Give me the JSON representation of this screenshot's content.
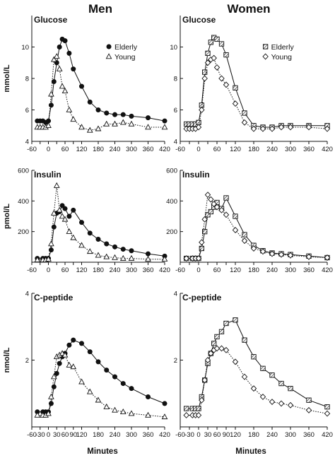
{
  "headers": {
    "left": "Men",
    "right": "Women"
  },
  "x_axis_label": "Minutes",
  "row_ylabels": [
    "mmol/L",
    "pmol/L",
    "nmol/L"
  ],
  "chart_data": [
    {
      "type": "line",
      "panel_label": "Glucose",
      "column": 0,
      "row": 0,
      "xlim": [
        -60,
        420
      ],
      "ylim": [
        4,
        12
      ],
      "xticks": [
        -60,
        -30,
        0,
        30,
        60,
        90,
        120,
        180,
        240,
        300,
        360,
        420
      ],
      "xticklabels": [
        "-60",
        "",
        "0",
        "",
        "60",
        "",
        "120",
        "180",
        "240",
        "300",
        "360",
        "420"
      ],
      "yticks": [
        4,
        6,
        8,
        10
      ],
      "yticklabels": [
        "4",
        "6",
        "8",
        "10"
      ],
      "legend": {
        "position": "top-right"
      },
      "series": [
        {
          "name": "Elderly",
          "marker": "filled-circle",
          "line": "solid",
          "x": [
            -40,
            -30,
            -20,
            -10,
            0,
            10,
            20,
            30,
            40,
            50,
            60,
            75,
            90,
            120,
            150,
            180,
            210,
            240,
            270,
            300,
            360,
            420
          ],
          "y": [
            5.3,
            5.3,
            5.3,
            5.2,
            5.3,
            6.3,
            7.8,
            9.0,
            10.0,
            10.5,
            10.4,
            9.6,
            8.6,
            7.5,
            6.5,
            6.0,
            5.8,
            5.7,
            5.7,
            5.6,
            5.5,
            5.3
          ]
        },
        {
          "name": "Young",
          "marker": "open-triangle",
          "line": "dotted",
          "x": [
            -40,
            -30,
            -20,
            -10,
            0,
            10,
            20,
            30,
            40,
            50,
            60,
            75,
            90,
            120,
            150,
            180,
            210,
            240,
            270,
            300,
            360,
            420
          ],
          "y": [
            4.9,
            4.9,
            4.9,
            4.9,
            5.0,
            7.0,
            9.2,
            9.4,
            8.6,
            7.5,
            7.2,
            6.0,
            5.4,
            4.9,
            4.7,
            4.8,
            5.1,
            5.1,
            5.2,
            5.1,
            4.9,
            4.9
          ]
        }
      ]
    },
    {
      "type": "line",
      "panel_label": "Glucose",
      "column": 1,
      "row": 0,
      "xlim": [
        -60,
        420
      ],
      "ylim": [
        4,
        12
      ],
      "xticks": [
        -60,
        -30,
        0,
        30,
        60,
        90,
        120,
        180,
        240,
        300,
        360,
        420
      ],
      "xticklabels": [
        "-60",
        "",
        "0",
        "",
        "60",
        "",
        "120",
        "180",
        "240",
        "300",
        "360",
        "420"
      ],
      "yticks": [
        4,
        6,
        8,
        10
      ],
      "yticklabels": [
        "4",
        "6",
        "8",
        "10"
      ],
      "legend": {
        "position": "top-right"
      },
      "series": [
        {
          "name": "Elderly",
          "marker": "hatched-square",
          "line": "solid",
          "x": [
            -40,
            -30,
            -20,
            -10,
            0,
            10,
            20,
            30,
            40,
            50,
            60,
            75,
            90,
            120,
            150,
            180,
            210,
            240,
            270,
            300,
            360,
            420
          ],
          "y": [
            5.1,
            5.1,
            5.1,
            5.1,
            5.2,
            6.3,
            8.4,
            9.6,
            10.3,
            10.6,
            10.5,
            10.2,
            9.5,
            7.4,
            5.8,
            5.0,
            4.9,
            4.9,
            5.0,
            5.0,
            5.0,
            5.0
          ]
        },
        {
          "name": "Young",
          "marker": "open-diamond",
          "line": "dotted",
          "x": [
            -40,
            -30,
            -20,
            -10,
            0,
            10,
            20,
            30,
            40,
            50,
            60,
            75,
            90,
            120,
            150,
            180,
            210,
            240,
            270,
            300,
            360,
            420
          ],
          "y": [
            4.8,
            4.8,
            4.8,
            4.8,
            4.9,
            6.0,
            8.0,
            9.0,
            9.2,
            9.3,
            8.7,
            8.0,
            7.6,
            6.4,
            5.2,
            4.8,
            4.8,
            4.8,
            4.9,
            4.9,
            4.9,
            4.8
          ]
        }
      ]
    },
    {
      "type": "line",
      "panel_label": "Insulin",
      "column": 0,
      "row": 1,
      "xlim": [
        -60,
        420
      ],
      "ylim": [
        0,
        600
      ],
      "xticks": [
        -60,
        -30,
        0,
        30,
        60,
        90,
        120,
        180,
        240,
        300,
        360,
        420
      ],
      "xticklabels": [
        "-60",
        "",
        "0",
        "",
        "60",
        "",
        "120",
        "180",
        "240",
        "300",
        "360",
        "420"
      ],
      "yticks": [
        0,
        200,
        400,
        600
      ],
      "yticklabels": [
        "",
        "200",
        "400",
        "600"
      ],
      "series": [
        {
          "name": "Elderly",
          "marker": "filled-circle",
          "line": "solid",
          "x": [
            -40,
            -20,
            -10,
            0,
            10,
            20,
            30,
            40,
            50,
            60,
            75,
            90,
            120,
            150,
            180,
            210,
            240,
            270,
            300,
            360,
            420
          ],
          "y": [
            25,
            25,
            25,
            25,
            80,
            230,
            320,
            330,
            370,
            350,
            300,
            340,
            260,
            190,
            150,
            120,
            100,
            85,
            75,
            55,
            40
          ]
        },
        {
          "name": "Young",
          "marker": "open-triangle",
          "line": "dotted",
          "x": [
            -40,
            -20,
            -10,
            0,
            10,
            20,
            30,
            40,
            50,
            60,
            75,
            90,
            120,
            150,
            180,
            210,
            240,
            270,
            300,
            360,
            420
          ],
          "y": [
            15,
            15,
            15,
            20,
            120,
            320,
            500,
            340,
            300,
            280,
            200,
            160,
            110,
            70,
            45,
            35,
            30,
            25,
            25,
            20,
            20
          ]
        }
      ]
    },
    {
      "type": "line",
      "panel_label": "Insulin",
      "column": 1,
      "row": 1,
      "xlim": [
        -60,
        420
      ],
      "ylim": [
        0,
        600
      ],
      "xticks": [
        -60,
        -30,
        0,
        30,
        60,
        90,
        120,
        180,
        240,
        300,
        360,
        420
      ],
      "xticklabels": [
        "-60",
        "",
        "0",
        "",
        "60",
        "",
        "120",
        "180",
        "240",
        "300",
        "360",
        "420"
      ],
      "yticks": [
        0,
        200,
        400,
        600
      ],
      "yticklabels": [
        "",
        "200",
        "400",
        "600"
      ],
      "series": [
        {
          "name": "Elderly",
          "marker": "hatched-square",
          "line": "solid",
          "x": [
            -40,
            -20,
            -10,
            0,
            10,
            20,
            30,
            40,
            50,
            60,
            75,
            90,
            120,
            150,
            180,
            210,
            240,
            270,
            300,
            360,
            420
          ],
          "y": [
            25,
            25,
            25,
            25,
            90,
            200,
            310,
            330,
            360,
            390,
            350,
            420,
            300,
            180,
            110,
            75,
            60,
            55,
            50,
            40,
            30
          ]
        },
        {
          "name": "Young",
          "marker": "open-diamond",
          "line": "dotted",
          "x": [
            -40,
            -20,
            -10,
            0,
            10,
            20,
            30,
            40,
            50,
            60,
            75,
            90,
            120,
            150,
            180,
            210,
            240,
            270,
            300,
            360,
            420
          ],
          "y": [
            25,
            25,
            25,
            25,
            130,
            280,
            440,
            410,
            380,
            360,
            340,
            310,
            210,
            140,
            90,
            70,
            55,
            50,
            45,
            35,
            30
          ]
        }
      ]
    },
    {
      "type": "line",
      "panel_label": "C-peptide",
      "column": 0,
      "row": 2,
      "xlim": [
        -60,
        420
      ],
      "ylim": [
        0,
        4
      ],
      "xticks": [
        -60,
        -30,
        0,
        30,
        60,
        90,
        120,
        180,
        240,
        300,
        360,
        420
      ],
      "xticklabels": [
        "-60",
        "-30",
        "0",
        "30",
        "60",
        "90",
        "120",
        "180",
        "240",
        "300",
        "360",
        "420"
      ],
      "yticks": [
        0,
        2,
        4
      ],
      "yticklabels": [
        "",
        "2",
        "4"
      ],
      "series": [
        {
          "name": "Elderly",
          "marker": "filled-circle",
          "line": "solid",
          "x": [
            -40,
            -20,
            -10,
            0,
            10,
            20,
            30,
            40,
            50,
            60,
            75,
            90,
            120,
            150,
            180,
            210,
            240,
            270,
            300,
            360,
            420
          ],
          "y": [
            0.45,
            0.45,
            0.45,
            0.45,
            0.7,
            1.2,
            1.6,
            1.9,
            2.1,
            2.2,
            2.45,
            2.6,
            2.5,
            2.25,
            1.95,
            1.7,
            1.5,
            1.3,
            1.15,
            0.9,
            0.7
          ]
        },
        {
          "name": "Young",
          "marker": "open-triangle",
          "line": "dotted",
          "x": [
            -40,
            -20,
            -10,
            0,
            10,
            20,
            30,
            40,
            50,
            60,
            75,
            90,
            120,
            150,
            180,
            210,
            240,
            270,
            300,
            360,
            420
          ],
          "y": [
            0.35,
            0.35,
            0.35,
            0.4,
            0.9,
            1.5,
            2.1,
            2.15,
            2.2,
            2.15,
            1.85,
            1.8,
            1.35,
            1.05,
            0.8,
            0.6,
            0.5,
            0.45,
            0.4,
            0.35,
            0.3
          ]
        }
      ]
    },
    {
      "type": "line",
      "panel_label": "C-peptide",
      "column": 1,
      "row": 2,
      "xlim": [
        -60,
        420
      ],
      "ylim": [
        0,
        4
      ],
      "xticks": [
        -60,
        -30,
        0,
        30,
        60,
        90,
        120,
        180,
        240,
        300,
        360,
        420
      ],
      "xticklabels": [
        "-60",
        "-30",
        "0",
        "30",
        "60",
        "90",
        "120",
        "180",
        "240",
        "300",
        "360",
        "420"
      ],
      "yticks": [
        0,
        2,
        4
      ],
      "yticklabels": [
        "",
        "2",
        "4"
      ],
      "series": [
        {
          "name": "Elderly",
          "marker": "hatched-square",
          "line": "solid",
          "x": [
            -40,
            -20,
            -10,
            0,
            10,
            20,
            30,
            40,
            50,
            60,
            75,
            90,
            120,
            150,
            180,
            210,
            240,
            270,
            300,
            360,
            420
          ],
          "y": [
            0.55,
            0.55,
            0.55,
            0.55,
            0.9,
            1.4,
            1.9,
            2.2,
            2.5,
            2.7,
            2.85,
            3.1,
            3.2,
            2.6,
            2.1,
            1.75,
            1.55,
            1.3,
            1.15,
            0.8,
            0.6
          ]
        },
        {
          "name": "Young",
          "marker": "open-diamond",
          "line": "dotted",
          "x": [
            -40,
            -20,
            -10,
            0,
            10,
            20,
            30,
            40,
            50,
            60,
            75,
            90,
            120,
            150,
            180,
            210,
            240,
            270,
            300,
            360,
            420
          ],
          "y": [
            0.35,
            0.35,
            0.35,
            0.35,
            0.8,
            1.4,
            2.0,
            2.2,
            2.3,
            2.35,
            2.35,
            2.3,
            1.95,
            1.5,
            1.15,
            0.9,
            0.75,
            0.7,
            0.65,
            0.5,
            0.4
          ]
        }
      ]
    }
  ]
}
